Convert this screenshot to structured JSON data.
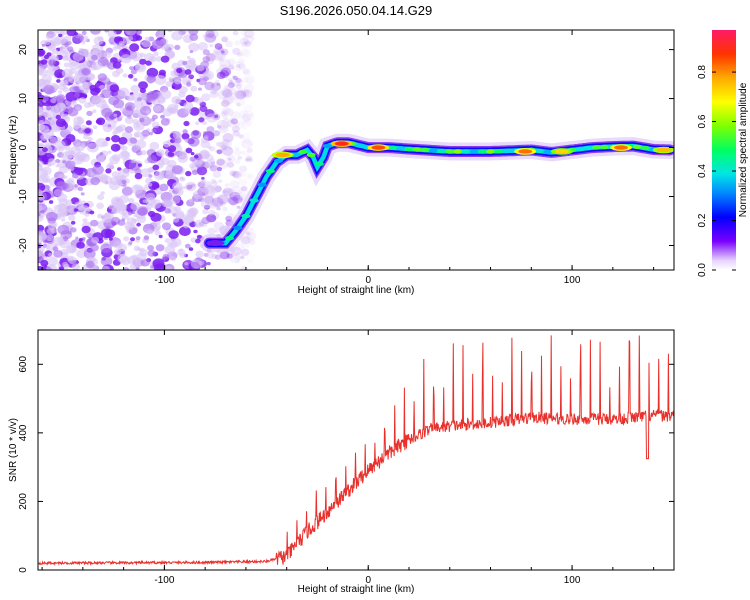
{
  "title": "S196.2026.050.04.14.G29",
  "chart_data": [
    {
      "type": "heatmap",
      "name": "spectrogram",
      "xlabel": "Height of straight line (km)",
      "ylabel": "Frequency (Hz)",
      "xlim": [
        -162,
        150
      ],
      "ylim": [
        -25,
        24
      ],
      "xticks": [
        -100,
        0,
        100
      ],
      "yticks": [
        -20,
        -10,
        0,
        10,
        20
      ],
      "colorbar": {
        "label": "Normalized spectral amplitude",
        "range": [
          0,
          0.97
        ],
        "ticks": [
          0.0,
          0.2,
          0.4,
          0.6,
          0.8
        ]
      },
      "ridge": {
        "x": [
          -78,
          -70,
          -65,
          -60,
          -55,
          -50,
          -45,
          -40,
          -35,
          -30,
          -27,
          -25,
          -22,
          -20,
          -15,
          -10,
          -5,
          0,
          10,
          20,
          40,
          60,
          80,
          90,
          100,
          110,
          120,
          130,
          140,
          148
        ],
        "y": [
          -19.5,
          -19.5,
          -17,
          -14,
          -10,
          -6,
          -3,
          -1.5,
          -1.5,
          -0.5,
          -2,
          -4,
          -2,
          0.3,
          1,
          1,
          0.5,
          0,
          0,
          -0.3,
          -0.8,
          -0.8,
          -0.5,
          -1,
          -0.5,
          0,
          0.2,
          0.3,
          -0.4,
          -0.5
        ]
      },
      "hot_spots": [
        {
          "x": -13,
          "y": 0.8,
          "v": 0.92
        },
        {
          "x": 5,
          "y": 0,
          "v": 0.88
        },
        {
          "x": -42,
          "y": -1.5,
          "v": 0.8
        },
        {
          "x": 77,
          "y": -0.8,
          "v": 0.85
        },
        {
          "x": 95,
          "y": -0.8,
          "v": 0.75
        },
        {
          "x": 124,
          "y": 0,
          "v": 0.85
        },
        {
          "x": 145,
          "y": -0.5,
          "v": 0.78
        }
      ],
      "noise_region_x": [
        -162,
        -55
      ]
    },
    {
      "type": "line",
      "name": "snr",
      "xlabel": "Height of straight line (km)",
      "ylabel": "SNR (10 * v/v)",
      "xlim": [
        -162,
        150
      ],
      "ylim": [
        0,
        700
      ],
      "xticks": [
        -100,
        0,
        100
      ],
      "yticks": [
        0,
        200,
        400,
        600
      ],
      "color": "#e8312c",
      "trend": {
        "x": [
          -162,
          -80,
          -50,
          -40,
          -30,
          -20,
          -10,
          0,
          10,
          20,
          30,
          40,
          60,
          80,
          100,
          120,
          140,
          150
        ],
        "y": [
          20,
          22,
          25,
          40,
          110,
          170,
          230,
          290,
          340,
          380,
          410,
          420,
          430,
          445,
          440,
          440,
          450,
          450
        ]
      },
      "dip": {
        "x": 137,
        "y": 325
      },
      "spike_start_x": -40,
      "spike_spacing_km": 4.8
    }
  ],
  "colors": {
    "heat_low": "#9b59e8",
    "line": "#e8312c"
  }
}
